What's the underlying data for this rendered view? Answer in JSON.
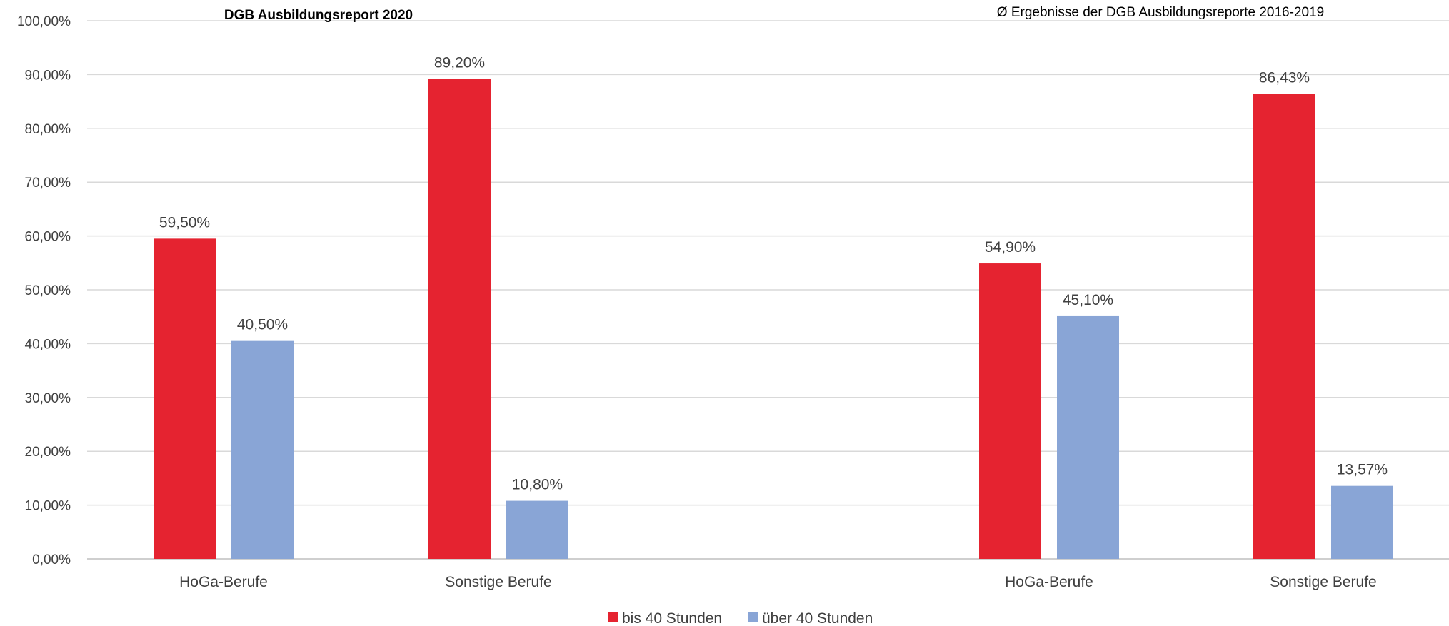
{
  "chart_data": {
    "type": "bar",
    "titles": [
      "DGB Ausbildungsreport 2020",
      "Ø Ergebnisse der DGB Ausbildungsreporte 2016-2019"
    ],
    "categories": [
      "HoGa-Berufe",
      "Sonstige Berufe",
      "HoGa-Berufe",
      "Sonstige Berufe"
    ],
    "series": [
      {
        "name": "bis 40 Stunden",
        "color": "#e52330",
        "values": [
          59.5,
          89.2,
          54.9,
          86.43
        ],
        "labels": [
          "59,50%",
          "89,20%",
          "54,90%",
          "86,43%"
        ]
      },
      {
        "name": "über 40 Stunden",
        "color": "#89a5d6",
        "values": [
          40.5,
          10.8,
          45.1,
          13.57
        ],
        "labels": [
          "40,50%",
          "10,80%",
          "45,10%",
          "13,57%"
        ]
      }
    ],
    "yticks": [
      "0,00%",
      "10,00%",
      "20,00%",
      "30,00%",
      "40,00%",
      "50,00%",
      "60,00%",
      "70,00%",
      "80,00%",
      "90,00%",
      "100,00%"
    ],
    "ylim": [
      0,
      100
    ],
    "xlabel": "",
    "ylabel": "",
    "grid": true,
    "legend_position": "bottom-center"
  }
}
